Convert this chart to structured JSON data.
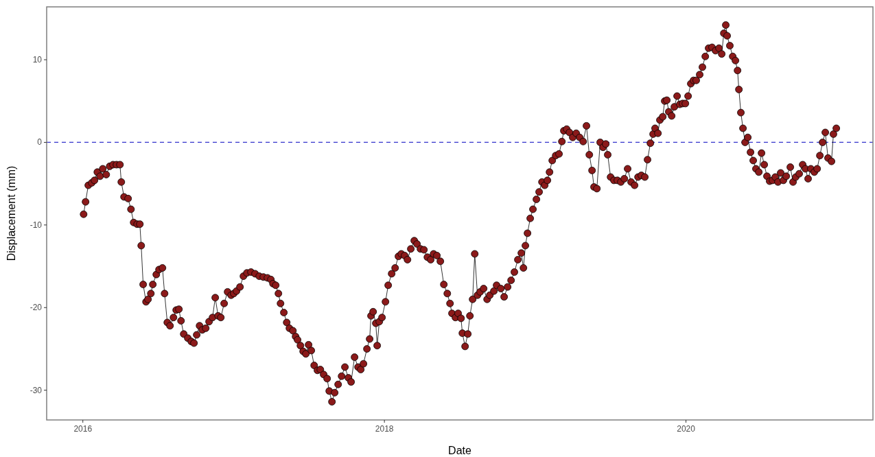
{
  "chart_data": {
    "type": "line",
    "xlabel": "Date",
    "ylabel": "Displacement (mm)",
    "xlim": [
      2015.76,
      2021.24
    ],
    "ylim": [
      -33.6,
      16.4
    ],
    "xticks": [
      2016,
      2018,
      2020
    ],
    "yticks": [
      -30,
      -20,
      -10,
      0,
      10
    ],
    "grid": false,
    "marker": "circle",
    "line_style": "solid",
    "ref_lines": [
      {
        "axis": "y",
        "value": 0,
        "color": "#3333cc",
        "line_style": "dashed"
      }
    ],
    "series": [
      {
        "color": "#8b1a1a",
        "x": [
          2016.005,
          2016.018,
          2016.036,
          2016.059,
          2016.077,
          2016.096,
          2016.114,
          2016.132,
          2016.155,
          2016.178,
          2016.2,
          2016.223,
          2016.246,
          2016.255,
          2016.273,
          2016.3,
          2016.319,
          2016.337,
          2016.36,
          2016.378,
          2016.387,
          2016.4,
          2016.419,
          2016.432,
          2016.451,
          2016.464,
          2016.487,
          2016.505,
          2016.528,
          2016.542,
          2016.56,
          2016.578,
          2016.601,
          2016.619,
          2016.637,
          2016.651,
          2016.669,
          2016.696,
          2016.719,
          2016.737,
          2016.755,
          2016.774,
          2016.792,
          2016.815,
          2016.837,
          2016.86,
          2016.878,
          2016.897,
          2016.915,
          2016.937,
          2016.96,
          2016.983,
          2017.001,
          2017.019,
          2017.042,
          2017.065,
          2017.088,
          2017.115,
          2017.142,
          2017.17,
          2017.197,
          2017.224,
          2017.247,
          2017.261,
          2017.279,
          2017.297,
          2017.311,
          2017.333,
          2017.352,
          2017.37,
          2017.393,
          2017.411,
          2017.424,
          2017.443,
          2017.461,
          2017.479,
          2017.497,
          2017.515,
          2017.534,
          2017.556,
          2017.575,
          2017.597,
          2017.62,
          2017.634,
          2017.652,
          2017.67,
          2017.693,
          2017.716,
          2017.738,
          2017.761,
          2017.779,
          2017.802,
          2017.825,
          2017.843,
          2017.861,
          2017.884,
          2017.902,
          2017.911,
          2017.925,
          2017.943,
          2017.952,
          2017.966,
          2017.984,
          2018.007,
          2018.025,
          2018.048,
          2018.071,
          2018.093,
          2018.112,
          2018.134,
          2018.153,
          2018.175,
          2018.198,
          2018.216,
          2018.239,
          2018.262,
          2018.285,
          2018.307,
          2018.326,
          2018.348,
          2018.371,
          2018.394,
          2018.417,
          2018.435,
          2018.448,
          2018.471,
          2018.489,
          2018.508,
          2018.517,
          2018.535,
          2018.553,
          2018.567,
          2018.585,
          2018.599,
          2018.617,
          2018.635,
          2018.658,
          2018.681,
          2018.699,
          2018.726,
          2018.744,
          2018.772,
          2018.794,
          2018.817,
          2018.84,
          2018.862,
          2018.885,
          2018.908,
          2018.922,
          2018.935,
          2018.949,
          2018.967,
          2018.985,
          2019.008,
          2019.026,
          2019.045,
          2019.063,
          2019.081,
          2019.095,
          2019.113,
          2019.136,
          2019.158,
          2019.177,
          2019.19,
          2019.209,
          2019.227,
          2019.249,
          2019.272,
          2019.295,
          2019.318,
          2019.34,
          2019.359,
          2019.377,
          2019.39,
          2019.409,
          2019.431,
          2019.45,
          2019.468,
          2019.481,
          2019.5,
          2019.522,
          2019.545,
          2019.568,
          2019.591,
          2019.613,
          2019.636,
          2019.659,
          2019.682,
          2019.704,
          2019.727,
          2019.745,
          2019.764,
          2019.782,
          2019.795,
          2019.814,
          2019.827,
          2019.846,
          2019.859,
          2019.873,
          2019.886,
          2019.905,
          2019.923,
          2019.941,
          2019.959,
          2019.978,
          2019.996,
          2020.014,
          2020.032,
          2020.05,
          2020.068,
          2020.091,
          2020.109,
          2020.128,
          2020.15,
          2020.173,
          2020.196,
          2020.219,
          2020.237,
          2020.251,
          2020.264,
          2020.273,
          2020.291,
          2020.31,
          2020.328,
          2020.342,
          2020.351,
          2020.364,
          2020.378,
          2020.392,
          2020.41,
          2020.428,
          2020.446,
          2020.464,
          2020.483,
          2020.501,
          2020.519,
          2020.537,
          2020.555,
          2020.574,
          2020.592,
          2020.61,
          2020.628,
          2020.646,
          2020.665,
          2020.692,
          2020.71,
          2020.728,
          2020.751,
          2020.774,
          2020.792,
          2020.81,
          2020.828,
          2020.851,
          2020.87,
          2020.888,
          2020.906,
          2020.924,
          2020.942,
          2020.965,
          2020.978,
          2020.997
        ],
        "values": [
          -8.7,
          -7.2,
          -5.2,
          -4.9,
          -4.6,
          -3.6,
          -4.1,
          -3.2,
          -3.9,
          -2.9,
          -2.7,
          -2.7,
          -2.7,
          -4.8,
          -6.6,
          -6.8,
          -8.1,
          -9.7,
          -9.9,
          -9.9,
          -12.5,
          -17.2,
          -19.3,
          -19.0,
          -18.3,
          -17.2,
          -16.0,
          -15.4,
          -15.2,
          -18.3,
          -21.8,
          -22.2,
          -21.2,
          -20.3,
          -20.2,
          -21.6,
          -23.2,
          -23.7,
          -24.1,
          -24.3,
          -23.3,
          -22.2,
          -22.7,
          -22.5,
          -21.7,
          -21.2,
          -18.8,
          -21.0,
          -21.2,
          -19.5,
          -18.1,
          -18.5,
          -18.3,
          -18.0,
          -17.5,
          -16.2,
          -15.8,
          -15.7,
          -15.9,
          -16.2,
          -16.3,
          -16.4,
          -16.6,
          -17.1,
          -17.3,
          -18.3,
          -19.5,
          -20.6,
          -21.8,
          -22.5,
          -22.8,
          -23.5,
          -23.9,
          -24.6,
          -25.3,
          -25.6,
          -24.5,
          -25.2,
          -27.0,
          -27.6,
          -27.5,
          -28.1,
          -28.6,
          -30.1,
          -31.4,
          -30.3,
          -29.3,
          -28.3,
          -27.2,
          -28.5,
          -29.0,
          -26.0,
          -27.2,
          -27.5,
          -26.8,
          -25.0,
          -23.8,
          -21.0,
          -20.5,
          -21.9,
          -24.6,
          -21.7,
          -21.2,
          -19.3,
          -17.3,
          -15.9,
          -15.2,
          -13.8,
          -13.5,
          -13.7,
          -14.2,
          -12.9,
          -11.9,
          -12.3,
          -12.9,
          -13.0,
          -13.9,
          -14.2,
          -13.5,
          -13.7,
          -14.4,
          -17.2,
          -18.3,
          -19.5,
          -20.7,
          -21.2,
          -20.7,
          -21.3,
          -23.1,
          -24.7,
          -23.2,
          -21.0,
          -19.0,
          -13.5,
          -18.5,
          -18.1,
          -17.7,
          -19.0,
          -18.5,
          -18.0,
          -17.3,
          -17.7,
          -18.7,
          -17.5,
          -16.7,
          -15.7,
          -14.2,
          -13.4,
          -15.2,
          -12.5,
          -11.0,
          -9.2,
          -8.1,
          -6.9,
          -6.0,
          -4.8,
          -5.2,
          -4.6,
          -3.6,
          -2.2,
          -1.6,
          -1.4,
          0.1,
          1.4,
          1.6,
          1.2,
          0.6,
          1.1,
          0.6,
          0.1,
          2.0,
          -1.5,
          -3.4,
          -5.4,
          -5.6,
          0.0,
          -0.6,
          -0.2,
          -1.5,
          -4.2,
          -4.6,
          -4.6,
          -4.8,
          -4.4,
          -3.2,
          -4.8,
          -5.2,
          -4.2,
          -4.0,
          -4.2,
          -2.1,
          -0.1,
          1.0,
          1.7,
          1.1,
          2.7,
          3.1,
          5.0,
          5.1,
          3.7,
          3.2,
          4.3,
          5.6,
          4.6,
          4.7,
          4.7,
          5.6,
          7.1,
          7.5,
          7.5,
          8.2,
          9.1,
          10.4,
          11.4,
          11.5,
          11.1,
          11.4,
          10.7,
          13.2,
          14.2,
          12.9,
          11.7,
          10.4,
          9.9,
          8.7,
          6.4,
          3.6,
          1.7,
          0.0,
          0.6,
          -1.2,
          -2.2,
          -3.2,
          -3.6,
          -1.3,
          -2.7,
          -4.1,
          -4.7,
          -4.6,
          -4.2,
          -4.8,
          -3.7,
          -4.6,
          -4.1,
          -3.0,
          -4.8,
          -4.2,
          -3.8,
          -2.7,
          -3.2,
          -4.4,
          -3.2,
          -3.6,
          -3.2,
          -1.6,
          0.0,
          1.2,
          -1.9,
          -2.3,
          1.0,
          1.7
        ]
      }
    ]
  }
}
